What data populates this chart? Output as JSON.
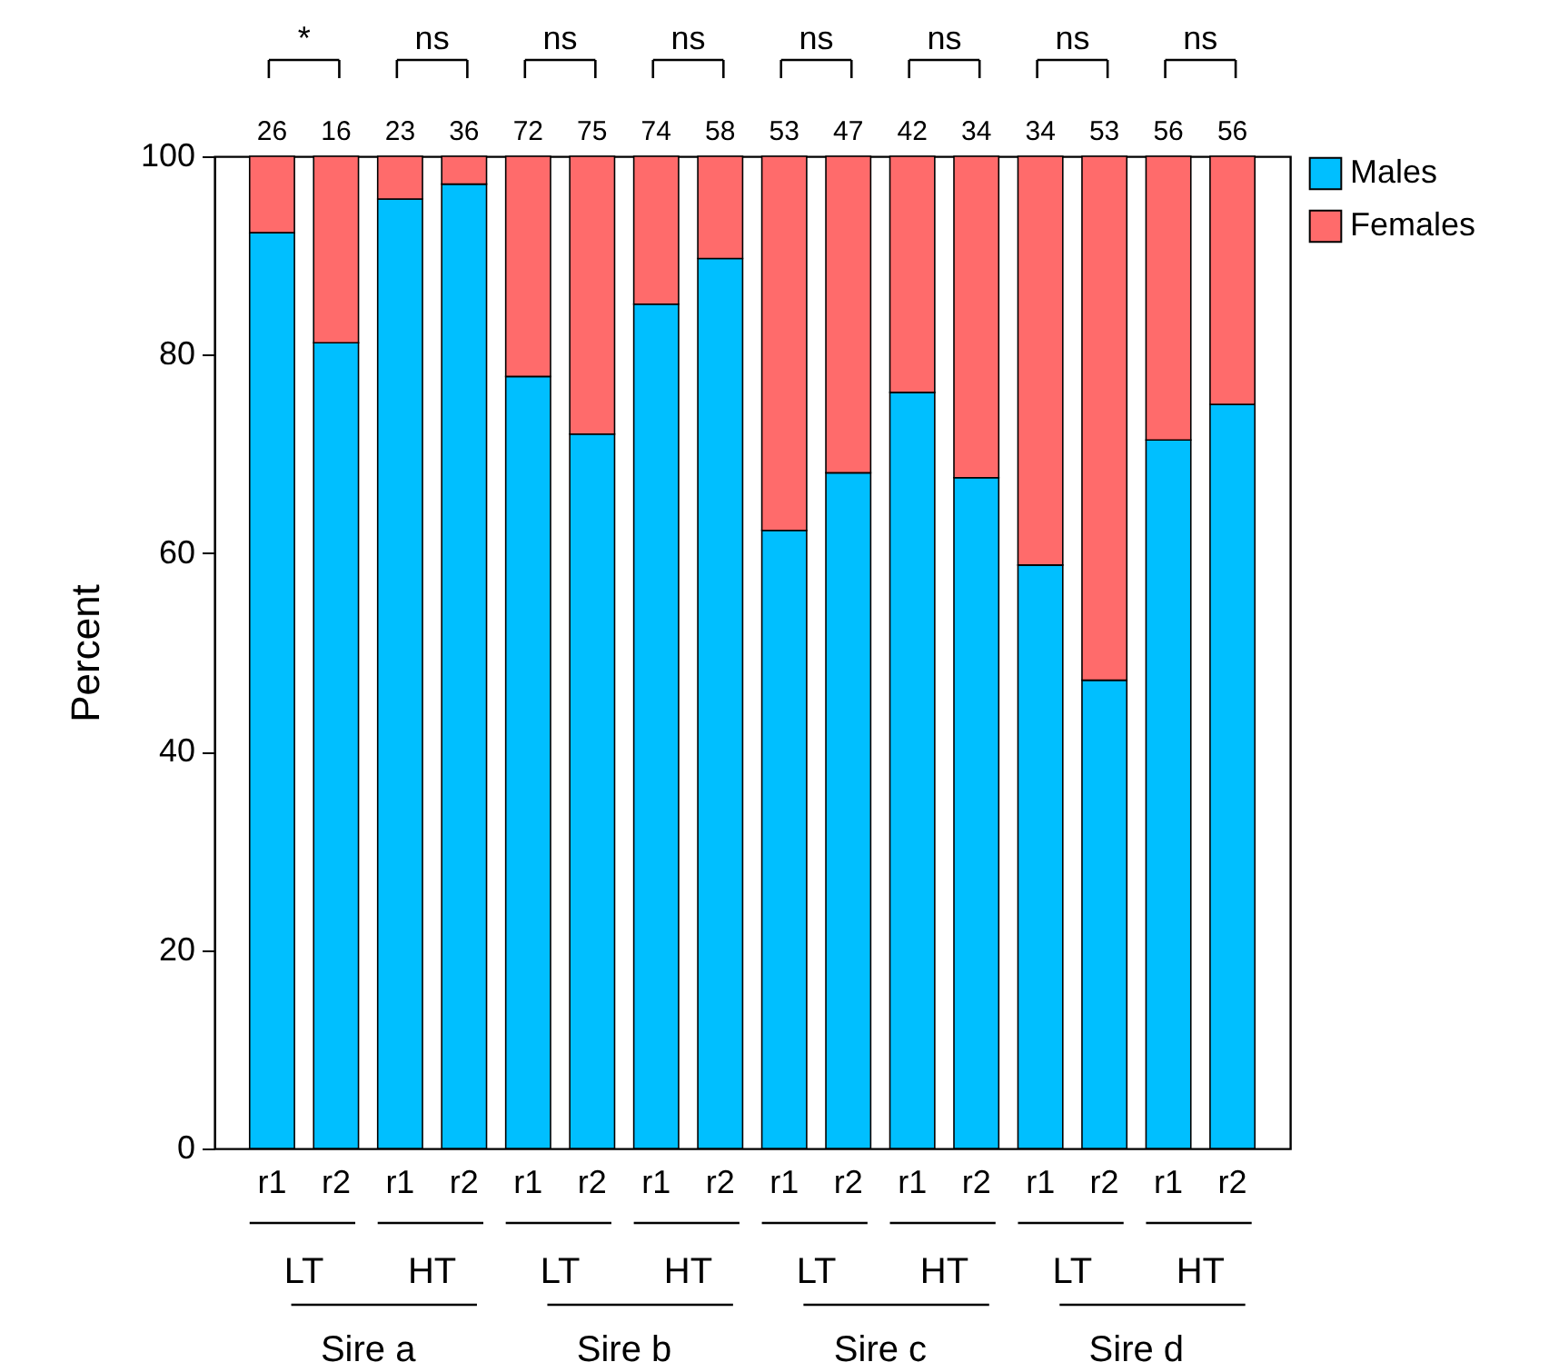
{
  "chart_data": {
    "type": "bar",
    "stacked": true,
    "ylabel": "Percent",
    "ylim": [
      0,
      100
    ],
    "yticks": [
      0,
      20,
      40,
      60,
      80,
      100
    ],
    "grid": false,
    "legend": "right",
    "categories": [
      "r1",
      "r2",
      "r1",
      "r2",
      "r1",
      "r2",
      "r1",
      "r2",
      "r1",
      "r2",
      "r1",
      "r2",
      "r1",
      "r2",
      "r1",
      "r2"
    ],
    "series": [
      {
        "name": "Males",
        "color": "#00bfff",
        "values": [
          92.3,
          81.2,
          95.7,
          97.2,
          77.8,
          72.0,
          85.1,
          89.7,
          62.3,
          68.1,
          76.2,
          67.6,
          58.8,
          47.2,
          71.4,
          75.0
        ]
      },
      {
        "name": "Females",
        "color": "#ff6b6b",
        "values": [
          7.7,
          18.8,
          4.3,
          2.8,
          22.2,
          28.0,
          14.9,
          10.3,
          37.7,
          31.9,
          23.8,
          32.4,
          41.2,
          52.8,
          28.6,
          25.0
        ]
      }
    ],
    "annotations": [
      "26",
      "16",
      "23",
      "36",
      "72",
      "75",
      "74",
      "58",
      "53",
      "47",
      "42",
      "34",
      "34",
      "53",
      "56",
      "56",
      "*",
      "ns",
      "ns",
      "ns",
      "ns",
      "ns",
      "ns",
      "ns",
      "LT",
      "HT",
      "LT",
      "HT",
      "LT",
      "HT",
      "LT",
      "HT",
      "Sire a",
      "Sire b",
      "Sire c",
      "Sire d"
    ]
  }
}
